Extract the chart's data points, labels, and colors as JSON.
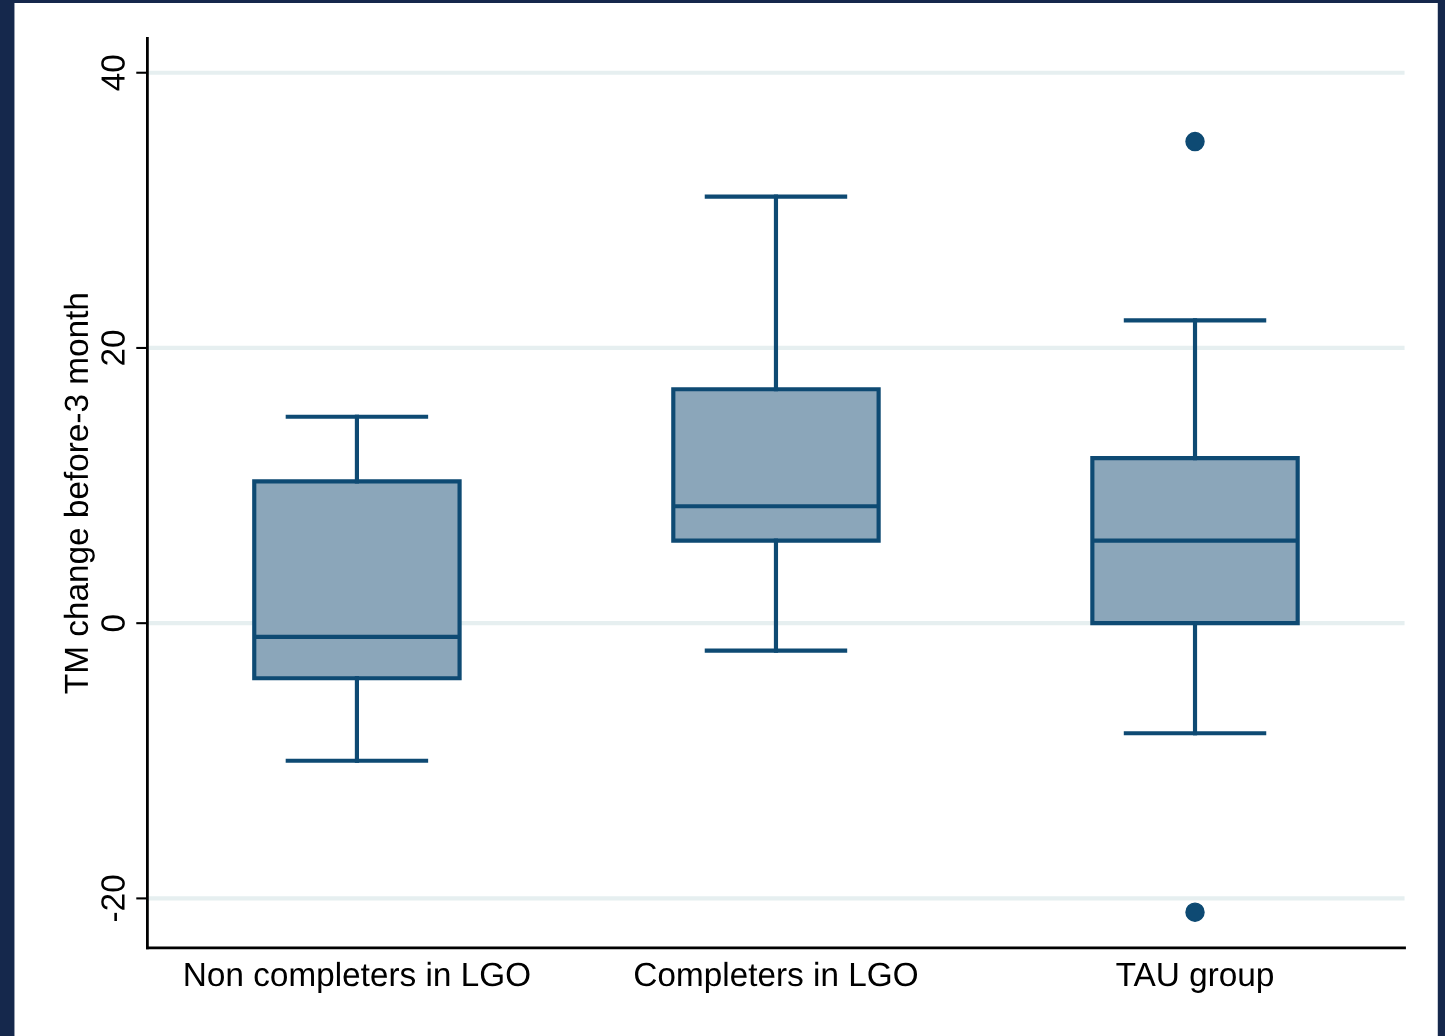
{
  "chart_data": {
    "type": "box",
    "categories": [
      "Non completers in LGO",
      "Completers in LGO",
      "TAU group"
    ],
    "ylabel": "TM change before-3 month",
    "ylim": [
      -23.6,
      42.5
    ],
    "yticks": [
      -20,
      0,
      20,
      40
    ],
    "grid": "y",
    "series": [
      {
        "color": "#8ba6ba",
        "boxes": [
          {
            "low": -10,
            "q1": -4,
            "median": -1,
            "q3": 10.3,
            "high": 15
          },
          {
            "low": -2,
            "q1": 6,
            "median": 8.5,
            "q3": 17,
            "high": 31
          },
          {
            "low": -8,
            "q1": 0,
            "median": 6,
            "q3": 12,
            "high": 22,
            "outliers": [
              35,
              -21
            ]
          }
        ]
      }
    ]
  }
}
